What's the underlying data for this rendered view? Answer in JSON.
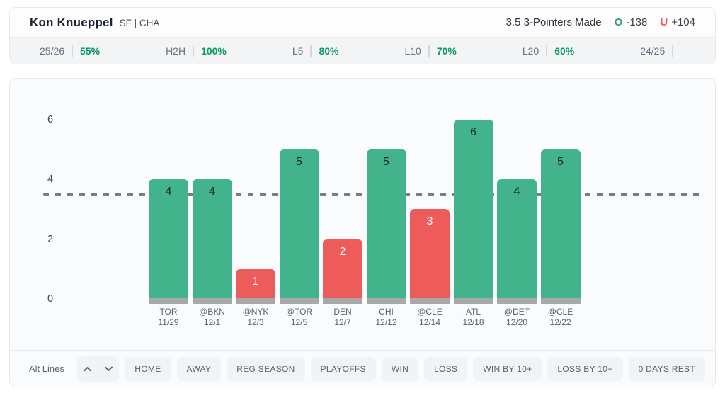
{
  "header": {
    "player_name": "Kon Knueppel",
    "player_meta": "SF | CHA",
    "prop_text": "3.5 3-Pointers Made",
    "over_label": "O",
    "over_odds": "-138",
    "under_label": "U",
    "under_odds": "+104"
  },
  "stats": [
    {
      "label": "25/26",
      "value": "55%"
    },
    {
      "label": "H2H",
      "value": "100%"
    },
    {
      "label": "L5",
      "value": "80%"
    },
    {
      "label": "L10",
      "value": "70%"
    },
    {
      "label": "L20",
      "value": "60%"
    },
    {
      "label": "24/25",
      "value": "-"
    }
  ],
  "chart_data": {
    "type": "bar",
    "title": "",
    "xlabel": "",
    "ylabel": "",
    "prop_line": 3.5,
    "yticks": [
      0,
      2,
      4,
      6
    ],
    "ylim": [
      0,
      6.8
    ],
    "grid": false,
    "categories": [
      "TOR 11/29",
      "@BKN 12/1",
      "@NYK 12/3",
      "@TOR 12/5",
      "DEN 12/7",
      "CHI 12/12",
      "@CLE 12/14",
      "ATL 12/18",
      "@DET 12/20",
      "@CLE 12/22"
    ],
    "values": [
      4,
      4,
      1,
      5,
      2,
      5,
      3,
      6,
      4,
      5
    ],
    "games": [
      {
        "opponent": "TOR",
        "date": "11/29",
        "value": 4
      },
      {
        "opponent": "@BKN",
        "date": "12/1",
        "value": 4
      },
      {
        "opponent": "@NYK",
        "date": "12/3",
        "value": 1
      },
      {
        "opponent": "@TOR",
        "date": "12/5",
        "value": 5
      },
      {
        "opponent": "DEN",
        "date": "12/7",
        "value": 2
      },
      {
        "opponent": "CHI",
        "date": "12/12",
        "value": 5
      },
      {
        "opponent": "@CLE",
        "date": "12/14",
        "value": 3
      },
      {
        "opponent": "ATL",
        "date": "12/18",
        "value": 6
      },
      {
        "opponent": "@DET",
        "date": "12/20",
        "value": 4
      },
      {
        "opponent": "@CLE",
        "date": "12/22",
        "value": 5
      }
    ]
  },
  "toolbar": {
    "alt_lines_label": "Alt Lines",
    "filters": [
      "HOME",
      "AWAY",
      "REG SEASON",
      "PLAYOFFS",
      "WIN",
      "LOSS",
      "WIN BY 10+",
      "LOSS BY 10+",
      "0 DAYS REST"
    ]
  },
  "colors": {
    "over_bar": "#42b38b",
    "under_bar": "#ee5b5b",
    "bar_base": "#a8a8a8",
    "bar_label_dark": "#1c2430",
    "bar_label_light": "#ffffff",
    "dashed_line": "#7b7d80",
    "stat_green": "#0b9a63",
    "over_text": "#2d9e74",
    "under_text": "#ee5560"
  }
}
